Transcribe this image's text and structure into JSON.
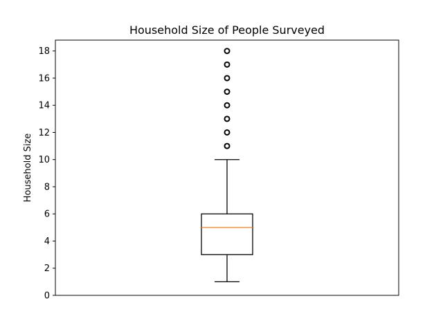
{
  "chart_data": {
    "type": "box",
    "title": "Household Size of People Surveyed",
    "xlabel": "",
    "ylabel": "Household Size",
    "ylim": [
      0,
      18.8
    ],
    "yticks": [
      0,
      2,
      4,
      6,
      8,
      10,
      12,
      14,
      16,
      18
    ],
    "grid": false,
    "box": {
      "whisker_low": 1,
      "q1": 3,
      "median": 5,
      "q3": 6,
      "whisker_high": 10,
      "outliers": [
        11,
        12,
        13,
        14,
        15,
        16,
        17,
        18
      ]
    },
    "colors": {
      "box": "#000000",
      "median": "#ff7f0e",
      "outlier": "#000000"
    }
  }
}
